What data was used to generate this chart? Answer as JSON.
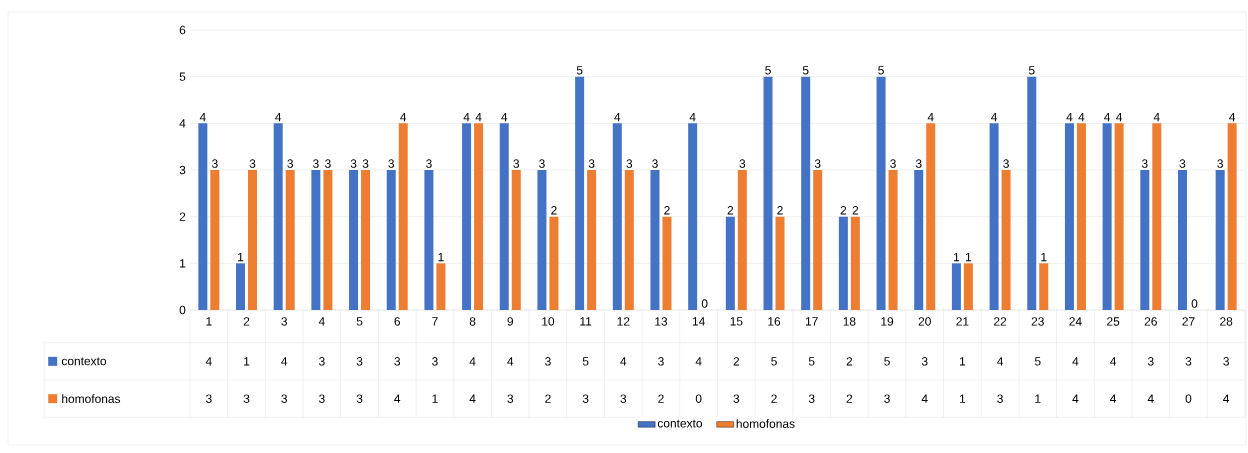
{
  "chart_data": {
    "type": "bar",
    "categories": [
      "1",
      "2",
      "3",
      "4",
      "5",
      "6",
      "7",
      "8",
      "9",
      "10",
      "11",
      "12",
      "13",
      "14",
      "15",
      "16",
      "17",
      "18",
      "19",
      "20",
      "21",
      "22",
      "23",
      "24",
      "25",
      "26",
      "27",
      "28"
    ],
    "series": [
      {
        "name": "contexto",
        "color": "#4472c4",
        "values": [
          4,
          1,
          4,
          3,
          3,
          3,
          3,
          4,
          4,
          3,
          5,
          4,
          3,
          4,
          2,
          5,
          5,
          2,
          5,
          3,
          1,
          4,
          5,
          4,
          4,
          3,
          3,
          3
        ],
        "value_labels": [
          "4",
          "1",
          "4",
          "3",
          "3",
          "3",
          "3",
          "4",
          "4",
          "3",
          "5",
          "4",
          "3",
          "4",
          "2",
          "5",
          "5",
          "2",
          "5",
          "3",
          "1",
          "4",
          "5",
          "4",
          "4",
          "3",
          "3",
          "3"
        ]
      },
      {
        "name": "homofonas",
        "color": "#ed7d31",
        "values": [
          3,
          3,
          3,
          3,
          3,
          4,
          1,
          4,
          3,
          2,
          3,
          3,
          2,
          0,
          3,
          2,
          3,
          2,
          3,
          4,
          1,
          3,
          1,
          4,
          4,
          4,
          0,
          4
        ],
        "value_labels": [
          "3",
          "3",
          "3",
          "3",
          "3",
          "4",
          "1",
          "4",
          "3",
          "2",
          "3",
          "3",
          "2",
          "0",
          "3",
          "2",
          "3",
          "2",
          "3",
          "4",
          "1",
          "3",
          "1",
          "4",
          "4",
          "4",
          "0",
          "4"
        ]
      }
    ],
    "ylim": [
      0,
      6
    ],
    "yticks": [
      0,
      1,
      2,
      3,
      4,
      5,
      6
    ],
    "grid": "y",
    "legend": "bottom",
    "data_labels": true
  }
}
